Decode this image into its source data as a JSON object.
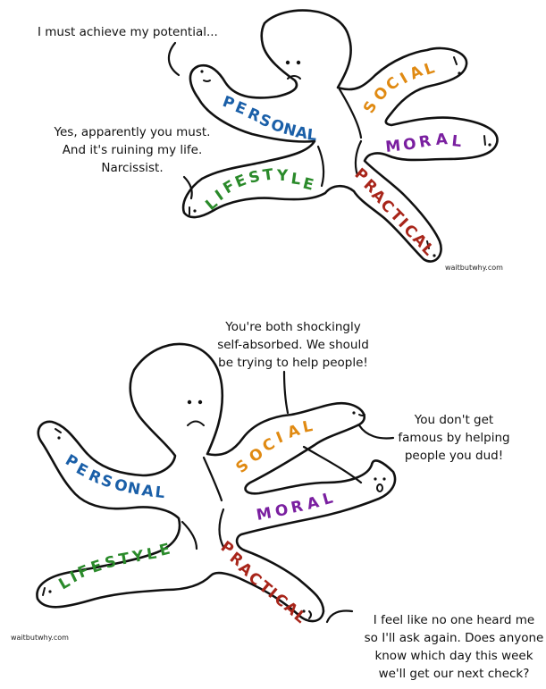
{
  "colors": {
    "personal": "#1a5fa8",
    "social": "#e08a12",
    "moral": "#7a1fa0",
    "lifestyle": "#2a8a2a",
    "practical": "#a8251a"
  },
  "credit": "waitbutwhy.com",
  "panel1": {
    "bubble_personal": [
      "I must achieve my potential..."
    ],
    "bubble_lifestyle": [
      "Yes, apparently you must.",
      "And it's ruining my life.",
      "Narcissist."
    ],
    "limbs": {
      "personal": [
        "P",
        "E",
        "R",
        "S",
        "O",
        "N",
        "A",
        "L"
      ],
      "social": [
        "S",
        "O",
        "C",
        "I",
        "A",
        "L"
      ],
      "moral": [
        "M",
        "O",
        "R",
        "A",
        "L"
      ],
      "lifestyle": [
        "L",
        "I",
        "F",
        "E",
        "S",
        "T",
        "Y",
        "L",
        "E"
      ],
      "practical": [
        "P",
        "R",
        "A",
        "C",
        "T",
        "I",
        "C",
        "A",
        "L"
      ]
    }
  },
  "panel2": {
    "bubble_moral": [
      "You're both shockingly",
      "self-absorbed. We should",
      "be trying to help people!"
    ],
    "bubble_social": [
      "You don't get",
      "famous by helping",
      "people you dud!"
    ],
    "bubble_practical": [
      "I feel like no one heard me",
      "so I'll ask again. Does anyone",
      "know which day this week",
      "we'll get our next check?"
    ],
    "limbs": {
      "personal": [
        "P",
        "E",
        "R",
        "S",
        "O",
        "N",
        "A",
        "L"
      ],
      "social": [
        "S",
        "O",
        "C",
        "I",
        "A",
        "L"
      ],
      "moral": [
        "M",
        "O",
        "R",
        "A",
        "L"
      ],
      "lifestyle": [
        "L",
        "I",
        "F",
        "E",
        "S",
        "T",
        "Y",
        "L",
        "E"
      ],
      "practical": [
        "P",
        "R",
        "A",
        "C",
        "T",
        "I",
        "C",
        "A",
        "L"
      ]
    }
  }
}
